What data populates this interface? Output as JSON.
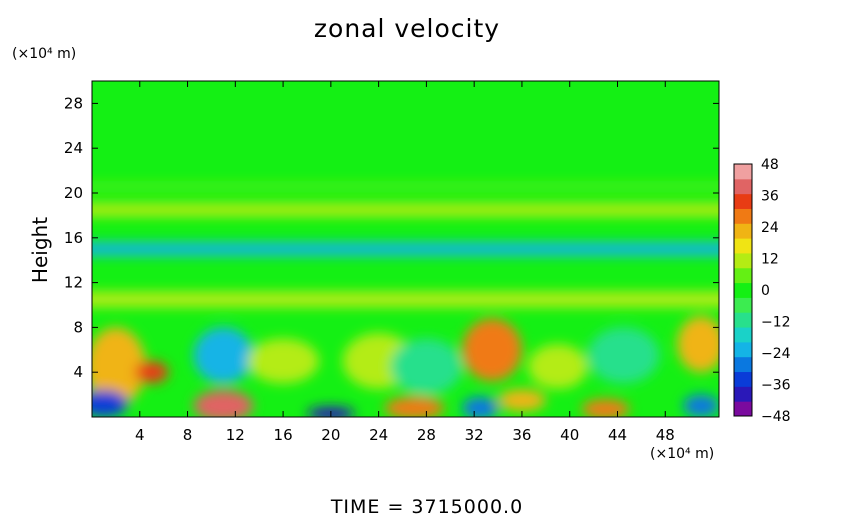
{
  "chart_data": {
    "type": "heatmap",
    "title": "zonal velocity",
    "ylabel": "Height",
    "y_unit": "(×10⁴ m)",
    "x_unit": "(×10⁴ m)",
    "footer": "TIME = 3715000.0",
    "xlim": [
      0,
      52.5
    ],
    "ylim": [
      0,
      30
    ],
    "x_ticks": [
      4,
      8,
      12,
      16,
      20,
      24,
      28,
      32,
      36,
      40,
      44,
      48
    ],
    "y_ticks": [
      4,
      8,
      12,
      16,
      20,
      24,
      28
    ],
    "colorbar": {
      "range": [
        -48,
        48
      ],
      "ticks": [
        48,
        36,
        24,
        12,
        0,
        -12,
        -24,
        -36,
        -48
      ],
      "colors": [
        "#7a0a9e",
        "#2a18b8",
        "#0a3cd8",
        "#0a78e0",
        "#14b4e6",
        "#1ad2c8",
        "#28e08c",
        "#3cec50",
        "#14f014",
        "#64f014",
        "#b4ec14",
        "#f0e414",
        "#f0b414",
        "#f07a14",
        "#e83c14",
        "#e06464",
        "#f0a0a0"
      ]
    },
    "features": [
      {
        "x": 2,
        "y": 4.5,
        "value": 22,
        "rx": 2.5,
        "ry": 3.5
      },
      {
        "x": 5,
        "y": 4,
        "value": 34,
        "rx": 1.4,
        "ry": 1.0
      },
      {
        "x": 11,
        "y": 1,
        "value": 38,
        "rx": 2.5,
        "ry": 1.4
      },
      {
        "x": 11,
        "y": 5.5,
        "value": -24,
        "rx": 2.5,
        "ry": 2.5
      },
      {
        "x": 1,
        "y": 1.2,
        "value": -34,
        "rx": 2,
        "ry": 1.2
      },
      {
        "x": 20,
        "y": 0.3,
        "value": -38,
        "rx": 2,
        "ry": 0.6
      },
      {
        "x": 16,
        "y": 5,
        "value": 14,
        "rx": 3,
        "ry": 2
      },
      {
        "x": 24,
        "y": 5,
        "value": 10,
        "rx": 3,
        "ry": 2.5
      },
      {
        "x": 27,
        "y": 0.8,
        "value": 26,
        "rx": 2.5,
        "ry": 1
      },
      {
        "x": 33.5,
        "y": 6,
        "value": 28,
        "rx": 2.5,
        "ry": 2.8
      },
      {
        "x": 32.5,
        "y": 0.8,
        "value": -26,
        "rx": 1.5,
        "ry": 1
      },
      {
        "x": 36,
        "y": 1.5,
        "value": 22,
        "rx": 2,
        "ry": 1
      },
      {
        "x": 39,
        "y": 4.5,
        "value": 12,
        "rx": 2.5,
        "ry": 2
      },
      {
        "x": 43,
        "y": 0.7,
        "value": 30,
        "rx": 2,
        "ry": 0.9
      },
      {
        "x": 44.5,
        "y": 5.5,
        "value": -14,
        "rx": 3,
        "ry": 2.5
      },
      {
        "x": 28,
        "y": 4.5,
        "value": -12,
        "rx": 3,
        "ry": 2.5
      },
      {
        "x": 51,
        "y": 6.5,
        "value": 20,
        "rx": 2,
        "ry": 2.5
      },
      {
        "x": 51,
        "y": 1,
        "value": -26,
        "rx": 1.5,
        "ry": 1
      }
    ],
    "bands": [
      {
        "y": 15,
        "value": -20,
        "width": 1.2
      },
      {
        "y": 18.5,
        "value": 14,
        "width": 1.2
      },
      {
        "y": 10.5,
        "value": 12,
        "width": 1.4
      },
      {
        "y": 20.6,
        "value": 6,
        "width": 0.5
      }
    ]
  }
}
